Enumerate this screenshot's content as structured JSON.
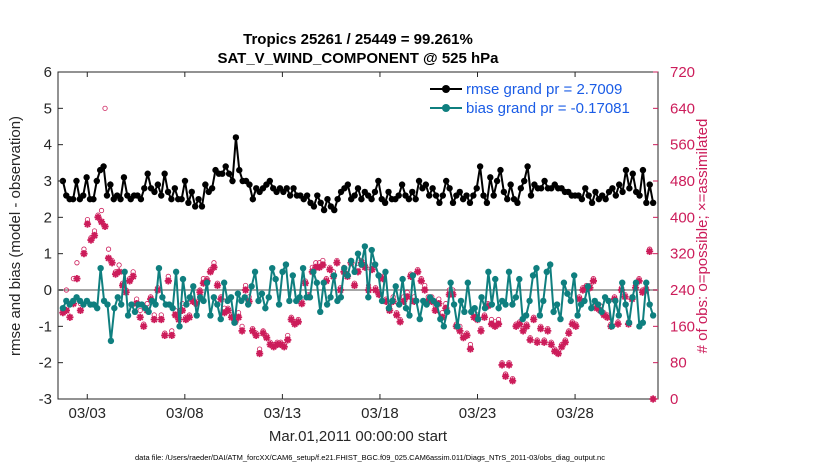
{
  "colors": {
    "rmse": "#000000",
    "bias": "#0f7f7f",
    "obs": "#cc1c5a",
    "right_axis": "#cc1c5a",
    "legend_rmse_text": "#1a5ce6",
    "legend_bias_text": "#1a5ce6",
    "zero_line": "#a6a6a6"
  },
  "chart_data": {
    "type": "line",
    "title": "Tropics 25261 / 25449 = 99.261%",
    "subtitle": "SAT_V_WIND_COMPONENT @ 525 hPa",
    "xlabel": "Mar.01,2011 00:00:00 start",
    "ylabel": "rmse and bias (model - observation)",
    "ylabel_right": "# of obs: o=possible; ×=assimilated",
    "footer": "data file: /Users/raeder/DAI/ATM_forcXX/CAM6_setup/f.e21.FHIST_BGC.f09_025.CAM6assim.011/Diags_NTrS_2011-03/obs_diag_output.nc",
    "xlim": [
      1.5,
      32.25
    ],
    "ylim": [
      -3,
      6
    ],
    "ylim_right": [
      0,
      720
    ],
    "x_ticks": [
      3,
      8,
      13,
      18,
      23,
      28
    ],
    "x_tick_labels": [
      "03/03",
      "03/08",
      "03/13",
      "03/18",
      "03/23",
      "03/28"
    ],
    "y_ticks": [
      -3,
      -2,
      -1,
      0,
      1,
      2,
      3,
      4,
      5,
      6
    ],
    "y_tick_labels": [
      "-3",
      "-2",
      "-1",
      "0",
      "1",
      "2",
      "3",
      "4",
      "5",
      "6"
    ],
    "y_right_ticks": [
      0,
      80,
      160,
      240,
      320,
      400,
      480,
      560,
      640,
      720
    ],
    "y_right_tick_labels": [
      "0",
      "80",
      "160",
      "240",
      "320",
      "400",
      "480",
      "560",
      "640",
      "720"
    ],
    "legend": [
      "rmse grand pr = 2.7009",
      "bias grand pr = -0.17081"
    ],
    "series": [
      {
        "name": "rmse",
        "values": [
          3.0,
          2.6,
          2.5,
          2.5,
          3.0,
          2.5,
          2.6,
          3.1,
          2.5,
          2.5,
          3.0,
          3.3,
          3.4,
          2.6,
          2.9,
          2.5,
          2.6,
          2.5,
          3.1,
          2.6,
          2.5,
          2.6,
          2.6,
          2.5,
          2.8,
          3.2,
          2.8,
          2.7,
          2.9,
          2.6,
          3.2,
          2.7,
          2.5,
          2.8,
          2.5,
          2.5,
          3.0,
          2.4,
          2.7,
          2.3,
          2.5,
          2.3,
          2.9,
          2.7,
          2.8,
          3.3,
          3.2,
          3.2,
          3.4,
          3.2,
          3.0,
          4.2,
          3.3,
          3.0,
          3.0,
          2.9,
          2.5,
          2.8,
          2.7,
          2.8,
          2.9,
          3.0,
          2.8,
          2.7,
          2.8,
          2.7,
          2.8,
          2.6,
          2.8,
          2.6,
          2.6,
          2.5,
          2.6,
          2.4,
          2.3,
          2.6,
          2.4,
          2.2,
          2.5,
          2.3,
          2.2,
          2.5,
          2.7,
          2.8,
          2.9,
          2.5,
          2.6,
          2.8,
          2.5,
          2.7,
          2.6,
          2.5,
          2.7,
          3.0,
          2.5,
          2.4,
          2.7,
          2.5,
          2.5,
          2.6,
          2.9,
          2.6,
          2.5,
          2.7,
          2.5,
          3.0,
          2.8,
          2.9,
          2.6,
          2.8,
          2.6,
          2.4,
          2.6,
          3.0,
          2.8,
          2.4,
          2.6,
          2.7,
          2.5,
          2.6,
          2.4,
          2.6,
          2.8,
          3.4,
          2.6,
          2.4,
          3.1,
          2.6,
          3.0,
          3.3,
          2.7,
          2.5,
          2.9,
          2.5,
          2.4,
          2.8,
          3.0,
          3.4,
          2.6,
          2.9,
          2.8,
          2.8,
          3.0,
          2.8,
          2.8,
          2.9,
          2.8,
          2.8,
          2.7,
          2.7,
          2.6,
          2.6,
          2.6,
          2.5,
          2.8,
          2.6,
          2.4,
          2.7,
          2.5,
          2.6,
          2.5,
          2.7,
          2.8,
          2.6,
          2.9,
          2.7,
          3.3,
          2.8,
          3.2,
          2.7,
          2.6,
          3.3,
          2.4,
          2.9,
          2.4
        ]
      },
      {
        "name": "bias",
        "values": [
          -0.5,
          -0.3,
          -0.4,
          -0.3,
          -0.2,
          -0.3,
          -0.4,
          -0.3,
          -0.4,
          -0.4,
          -0.5,
          0.6,
          -0.3,
          -0.4,
          -1.4,
          -0.5,
          -0.2,
          -0.4,
          0.5,
          -0.7,
          -0.4,
          -0.6,
          -0.4,
          -0.4,
          -0.5,
          -0.6,
          -0.3,
          -0.4,
          0.6,
          -0.2,
          -0.4,
          -0.4,
          -0.5,
          0.5,
          -1.0,
          0.3,
          -0.4,
          -0.2,
          0.1,
          -0.7,
          -0.2,
          -0.3,
          0.2,
          -0.7,
          -0.2,
          -0.4,
          -0.8,
          0.2,
          -0.3,
          -0.2,
          -0.9,
          -0.1,
          -0.3,
          -0.2,
          -0.4,
          0.1,
          0.5,
          -0.3,
          -0.1,
          -0.5,
          -0.2,
          0.6,
          0.3,
          -0.4,
          0.5,
          0.7,
          -0.3,
          0.4,
          -0.3,
          -0.2,
          0.6,
          -0.2,
          -0.2,
          0.5,
          0.2,
          -0.6,
          0.2,
          -0.4,
          -0.2,
          0.4,
          -0.3,
          -0.2,
          0.6,
          0.4,
          0.8,
          0.5,
          1.0,
          0.7,
          1.2,
          -0.2,
          1.1,
          0.7,
          0.4,
          -0.3,
          0.5,
          -0.5,
          -0.3,
          0.1,
          -0.4,
          0.3,
          -0.5,
          -0.7,
          0.4,
          -0.3,
          -0.8,
          -0.3,
          -0.4,
          -0.2,
          -0.3,
          -0.4,
          -0.8,
          -1.0,
          -0.6,
          0.2,
          -0.4,
          -1.0,
          -0.3,
          -0.6,
          0.2,
          -0.6,
          -0.5,
          -0.8,
          -0.2,
          -0.5,
          0.5,
          -0.4,
          0.3,
          -0.5,
          -0.3,
          -0.4,
          0.5,
          -0.4,
          -0.2,
          0.3,
          -0.8,
          -0.7,
          -0.3,
          0.4,
          0.6,
          -0.7,
          -0.3,
          0.5,
          0.7,
          -0.6,
          -0.4,
          -0.8,
          0.2,
          -0.1,
          -0.3,
          0.4,
          -0.7,
          -0.4,
          -0.3,
          0.1,
          -0.5,
          -0.3,
          -0.4,
          -0.6,
          -0.2,
          -0.3,
          -1.0,
          -0.3,
          -0.7,
          0.2,
          -0.4,
          -0.9,
          -0.2,
          0.2,
          -1.0,
          -0.9,
          0.2,
          -0.4,
          -0.7
        ]
      },
      {
        "name": "obs_assimilated",
        "values": [
          190,
          195,
          180,
          210,
          265,
          195,
          320,
          385,
          350,
          360,
          400,
          390,
          380,
          310,
          300,
          275,
          280,
          250,
          235,
          260,
          270,
          210,
          180,
          160,
          195,
          220,
          175,
          240,
          175,
          140,
          260,
          140,
          185,
          175,
          195,
          175,
          180,
          215,
          210,
          235,
          255,
          260,
          280,
          290,
          250,
          220,
          190,
          195,
          180,
          170,
          180,
          150,
          240,
          215,
          150,
          140,
          100,
          145,
          135,
          120,
          115,
          120,
          120,
          115,
          130,
          175,
          165,
          170,
          210,
          255,
          225,
          280,
          290,
          290,
          295,
          260,
          285,
          270,
          300,
          240,
          280,
          270,
          300,
          250,
          280,
          300,
          290,
          240,
          285,
          240,
          230,
          265,
          215,
          195,
          215,
          185,
          170,
          215,
          225,
          270,
          215,
          280,
          260,
          240,
          215,
          215,
          195,
          210,
          180,
          200,
          230,
          230,
          160,
          150,
          135,
          140,
          110,
          180,
          175,
          150,
          180,
          205,
          165,
          160,
          165,
          75,
          50,
          75,
          40,
          160,
          165,
          150,
          160,
          130,
          175,
          125,
          155,
          125,
          150,
          120,
          105,
          100,
          115,
          125,
          145,
          165,
          160,
          220,
          240,
          245,
          245,
          260,
          200,
          195,
          185,
          180,
          160,
          220,
          165,
          240,
          225,
          165,
          220,
          245,
          260,
          235,
          240,
          325,
          0
        ]
      },
      {
        "name": "obs_possible",
        "values": [
          200,
          240,
          210,
          265,
          300,
          210,
          330,
          395,
          355,
          370,
          405,
          415,
          640,
          330,
          305,
          280,
          295,
          255,
          240,
          265,
          280,
          220,
          195,
          165,
          210,
          225,
          185,
          245,
          185,
          145,
          270,
          150,
          195,
          185,
          210,
          180,
          185,
          220,
          215,
          240,
          265,
          265,
          285,
          300,
          255,
          225,
          200,
          200,
          185,
          175,
          190,
          160,
          250,
          225,
          155,
          145,
          110,
          150,
          140,
          125,
          120,
          125,
          125,
          120,
          140,
          180,
          170,
          175,
          215,
          260,
          230,
          290,
          300,
          300,
          305,
          265,
          290,
          280,
          305,
          245,
          290,
          275,
          305,
          255,
          290,
          305,
          295,
          250,
          295,
          245,
          235,
          270,
          220,
          205,
          225,
          190,
          175,
          225,
          235,
          275,
          225,
          285,
          265,
          250,
          225,
          225,
          205,
          220,
          190,
          210,
          240,
          240,
          165,
          160,
          140,
          145,
          120,
          190,
          185,
          155,
          185,
          210,
          175,
          170,
          175,
          80,
          55,
          80,
          45,
          165,
          170,
          155,
          165,
          135,
          180,
          130,
          160,
          130,
          155,
          125,
          110,
          105,
          120,
          130,
          150,
          170,
          165,
          225,
          245,
          250,
          250,
          265,
          210,
          205,
          190,
          185,
          165,
          225,
          170,
          245,
          230,
          170,
          225,
          250,
          265,
          240,
          245,
          330,
          0
        ]
      }
    ]
  }
}
